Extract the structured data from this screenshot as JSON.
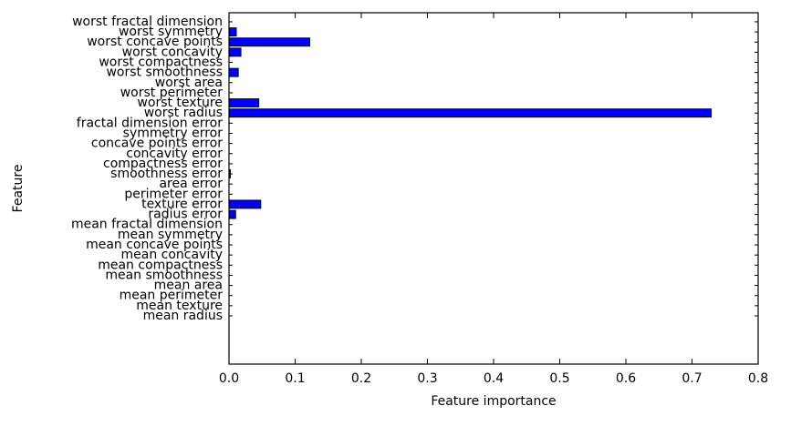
{
  "chart_data": {
    "type": "barh",
    "xlabel": "Feature importance",
    "ylabel": "Feature",
    "categories": [
      "mean radius",
      "mean texture",
      "mean perimeter",
      "mean area",
      "mean smoothness",
      "mean compactness",
      "mean concavity",
      "mean concave points",
      "mean symmetry",
      "mean fractal dimension",
      "radius error",
      "texture error",
      "perimeter error",
      "area error",
      "smoothness error",
      "compactness error",
      "concavity error",
      "concave points error",
      "symmetry error",
      "fractal dimension error",
      "worst radius",
      "worst texture",
      "worst perimeter",
      "worst area",
      "worst smoothness",
      "worst compactness",
      "worst concavity",
      "worst concave points",
      "worst symmetry",
      "worst fractal dimension"
    ],
    "values": [
      0,
      0,
      0,
      0,
      0,
      0,
      0,
      0,
      0,
      0,
      0.01,
      0.048,
      0,
      0,
      0.002,
      0,
      0,
      0,
      0,
      0,
      0.729,
      0.045,
      0,
      0,
      0.014,
      0,
      0.018,
      0.122,
      0.011,
      0
    ],
    "color": "#0000ff",
    "xlim": [
      0,
      0.8
    ],
    "xticks": [
      {
        "value": 0,
        "label": "0.0"
      },
      0.1,
      0.2,
      0.3,
      0.4,
      0.5,
      0.6,
      0.7,
      0.8
    ]
  }
}
